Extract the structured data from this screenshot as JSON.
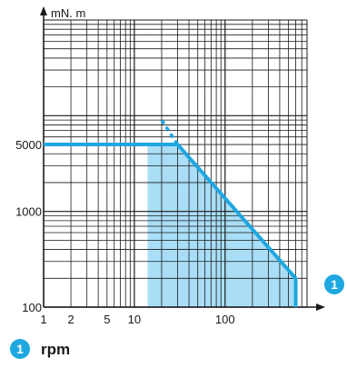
{
  "chart_data": {
    "type": "line",
    "x_scale": "log",
    "y_scale": "log",
    "ylabel": "mN. m",
    "x_axis_marker": "1",
    "legend": {
      "marker": "1",
      "text": "rpm"
    },
    "x_ticks": [
      "1",
      "2",
      "5",
      "10",
      "100"
    ],
    "x_tick_values": [
      1,
      2,
      5,
      10,
      100
    ],
    "y_ticks": [
      "100",
      "1000",
      "5000"
    ],
    "y_tick_values": [
      100,
      1000,
      5000
    ],
    "xlim": [
      1,
      800
    ],
    "ylim": [
      100,
      100000
    ],
    "grid": true,
    "series": [
      {
        "style": "solid",
        "points": [
          [
            1,
            5000
          ],
          [
            30,
            5000
          ],
          [
            600,
            200
          ],
          [
            600,
            100
          ]
        ]
      },
      {
        "style": "dashed",
        "points": [
          [
            20,
            9000
          ],
          [
            30,
            5000
          ]
        ]
      }
    ],
    "shaded_region": {
      "x_from": 14,
      "upper_boundary": [
        [
          14,
          5000
        ],
        [
          30,
          5000
        ],
        [
          600,
          200
        ],
        [
          600,
          100
        ]
      ],
      "lower": 100
    },
    "colors": {
      "line": "#1ea7e1",
      "fill": "#a9def6",
      "badge": "#1ea7e1",
      "grid": "#1a1a1a"
    }
  }
}
